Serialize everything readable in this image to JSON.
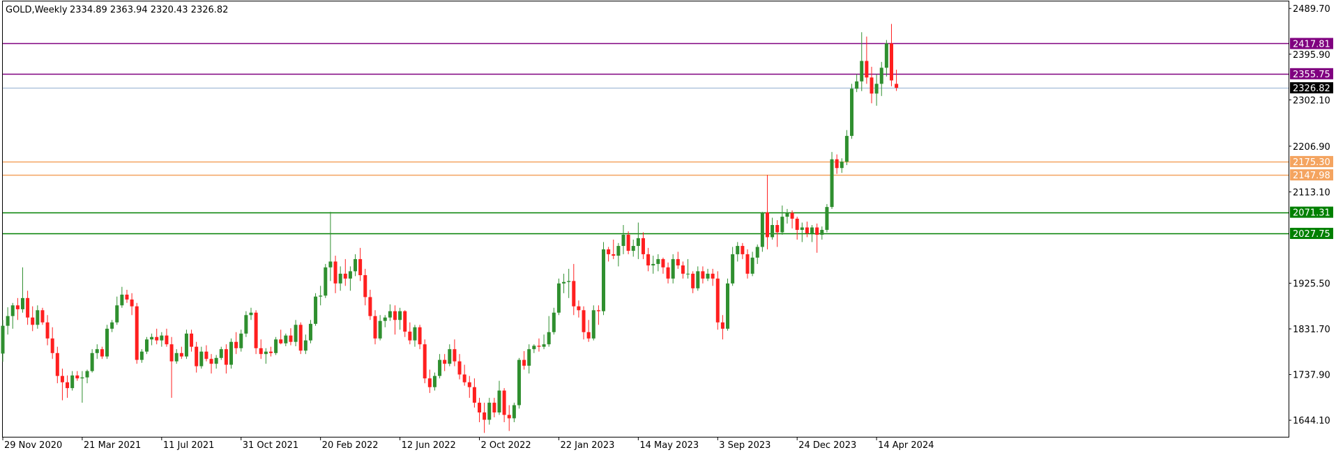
{
  "header": {
    "symbol_label": "GOLD,Weekly",
    "ohlc_label": "2334.89 2363.94 2320.43 2326.82"
  },
  "colors": {
    "bull": "#2f8f2f",
    "bear": "#ff1f1f",
    "grid": "#000000",
    "purple": "#800080",
    "orange": "#f4a460",
    "green": "#008000",
    "current": "#b0c4de",
    "current_tag": "#000000"
  },
  "chart_data": {
    "type": "candlestick",
    "title": "GOLD,Weekly",
    "ylim": [
      1610.0,
      2500.0
    ],
    "yticks": [
      "2489.70",
      "2395.90",
      "2302.10",
      "2206.90",
      "2113.10",
      "1925.50",
      "1831.70",
      "1737.90",
      "1644.10"
    ],
    "xticks": [
      "29 Nov 2020",
      "21 Mar 2021",
      "11 Jul 2021",
      "31 Oct 2021",
      "20 Feb 2022",
      "12 Jun 2022",
      "2 Oct 2022",
      "22 Jan 2023",
      "14 May 2023",
      "3 Sep 2023",
      "24 Dec 2023",
      "14 Apr 2024"
    ],
    "xtick_index": [
      0,
      16,
      32,
      48,
      64,
      80,
      96,
      112,
      128,
      144,
      160,
      176
    ],
    "levels": [
      {
        "value": 2417.81,
        "label": "2417.81",
        "color": "purple"
      },
      {
        "value": 2355.75,
        "label": "2355.75",
        "color": "purple"
      },
      {
        "value": 2326.82,
        "label": "2326.82",
        "color": "current"
      },
      {
        "value": 2175.3,
        "label": "2175.30",
        "color": "orange"
      },
      {
        "value": 2147.98,
        "label": "2147.98",
        "color": "orange"
      },
      {
        "value": 2071.31,
        "label": "2071.31",
        "color": "green"
      },
      {
        "value": 2027.75,
        "label": "2027.75",
        "color": "green"
      }
    ],
    "candles": [
      [
        1781,
        1850,
        1764,
        1838
      ],
      [
        1838,
        1876,
        1820,
        1858
      ],
      [
        1858,
        1885,
        1832,
        1880
      ],
      [
        1880,
        1895,
        1850,
        1872
      ],
      [
        1872,
        1958,
        1865,
        1895
      ],
      [
        1895,
        1910,
        1840,
        1855
      ],
      [
        1855,
        1878,
        1827,
        1840
      ],
      [
        1840,
        1880,
        1832,
        1870
      ],
      [
        1870,
        1875,
        1840,
        1845
      ],
      [
        1845,
        1860,
        1798,
        1812
      ],
      [
        1812,
        1835,
        1770,
        1782
      ],
      [
        1782,
        1795,
        1720,
        1735
      ],
      [
        1735,
        1750,
        1685,
        1722
      ],
      [
        1722,
        1736,
        1690,
        1710
      ],
      [
        1710,
        1745,
        1705,
        1736
      ],
      [
        1736,
        1745,
        1725,
        1730
      ],
      [
        1730,
        1745,
        1680,
        1732
      ],
      [
        1732,
        1748,
        1720,
        1745
      ],
      [
        1745,
        1790,
        1742,
        1782
      ],
      [
        1782,
        1800,
        1770,
        1790
      ],
      [
        1790,
        1795,
        1770,
        1775
      ],
      [
        1775,
        1840,
        1770,
        1832
      ],
      [
        1832,
        1850,
        1825,
        1845
      ],
      [
        1845,
        1898,
        1840,
        1880
      ],
      [
        1880,
        1918,
        1875,
        1902
      ],
      [
        1902,
        1912,
        1885,
        1892
      ],
      [
        1892,
        1905,
        1860,
        1878
      ],
      [
        1878,
        1885,
        1760,
        1768
      ],
      [
        1768,
        1790,
        1762,
        1785
      ],
      [
        1785,
        1815,
        1780,
        1810
      ],
      [
        1810,
        1822,
        1798,
        1815
      ],
      [
        1815,
        1832,
        1800,
        1808
      ],
      [
        1808,
        1825,
        1795,
        1818
      ],
      [
        1818,
        1832,
        1795,
        1800
      ],
      [
        1800,
        1815,
        1690,
        1765
      ],
      [
        1765,
        1790,
        1760,
        1782
      ],
      [
        1782,
        1795,
        1770,
        1775
      ],
      [
        1775,
        1830,
        1770,
        1822
      ],
      [
        1822,
        1830,
        1785,
        1795
      ],
      [
        1795,
        1805,
        1742,
        1755
      ],
      [
        1755,
        1795,
        1750,
        1785
      ],
      [
        1785,
        1798,
        1765,
        1770
      ],
      [
        1770,
        1780,
        1740,
        1760
      ],
      [
        1760,
        1778,
        1750,
        1772
      ],
      [
        1772,
        1795,
        1768,
        1790
      ],
      [
        1790,
        1800,
        1740,
        1758
      ],
      [
        1758,
        1812,
        1750,
        1805
      ],
      [
        1805,
        1825,
        1780,
        1792
      ],
      [
        1792,
        1830,
        1785,
        1822
      ],
      [
        1822,
        1868,
        1815,
        1860
      ],
      [
        1860,
        1875,
        1850,
        1865
      ],
      [
        1865,
        1870,
        1780,
        1792
      ],
      [
        1792,
        1810,
        1770,
        1780
      ],
      [
        1780,
        1792,
        1760,
        1785
      ],
      [
        1785,
        1795,
        1775,
        1782
      ],
      [
        1782,
        1815,
        1778,
        1810
      ],
      [
        1810,
        1830,
        1800,
        1802
      ],
      [
        1802,
        1822,
        1796,
        1818
      ],
      [
        1818,
        1833,
        1798,
        1805
      ],
      [
        1805,
        1850,
        1796,
        1840
      ],
      [
        1840,
        1845,
        1780,
        1787
      ],
      [
        1787,
        1820,
        1780,
        1808
      ],
      [
        1808,
        1850,
        1802,
        1842
      ],
      [
        1842,
        1905,
        1838,
        1898
      ],
      [
        1898,
        1920,
        1880,
        1900
      ],
      [
        1900,
        1965,
        1895,
        1958
      ],
      [
        1958,
        2072,
        1930,
        1970
      ],
      [
        1970,
        1982,
        1905,
        1925
      ],
      [
        1925,
        1960,
        1910,
        1945
      ],
      [
        1945,
        1975,
        1920,
        1935
      ],
      [
        1935,
        1960,
        1910,
        1950
      ],
      [
        1950,
        1985,
        1940,
        1975
      ],
      [
        1975,
        1998,
        1930,
        1942
      ],
      [
        1942,
        1955,
        1880,
        1897
      ],
      [
        1897,
        1912,
        1850,
        1858
      ],
      [
        1858,
        1870,
        1800,
        1812
      ],
      [
        1812,
        1860,
        1808,
        1848
      ],
      [
        1848,
        1860,
        1835,
        1855
      ],
      [
        1855,
        1882,
        1848,
        1868
      ],
      [
        1868,
        1880,
        1820,
        1850
      ],
      [
        1850,
        1875,
        1830,
        1868
      ],
      [
        1868,
        1870,
        1815,
        1826
      ],
      [
        1826,
        1845,
        1800,
        1808
      ],
      [
        1808,
        1840,
        1795,
        1835
      ],
      [
        1835,
        1840,
        1790,
        1800
      ],
      [
        1800,
        1810,
        1720,
        1730
      ],
      [
        1730,
        1748,
        1700,
        1712
      ],
      [
        1712,
        1742,
        1705,
        1735
      ],
      [
        1735,
        1780,
        1730,
        1768
      ],
      [
        1768,
        1780,
        1745,
        1760
      ],
      [
        1760,
        1800,
        1755,
        1790
      ],
      [
        1790,
        1810,
        1755,
        1765
      ],
      [
        1765,
        1780,
        1728,
        1738
      ],
      [
        1738,
        1758,
        1715,
        1722
      ],
      [
        1722,
        1735,
        1690,
        1712
      ],
      [
        1712,
        1730,
        1670,
        1680
      ],
      [
        1680,
        1690,
        1640,
        1660
      ],
      [
        1660,
        1680,
        1618,
        1645
      ],
      [
        1645,
        1690,
        1635,
        1680
      ],
      [
        1680,
        1690,
        1650,
        1660
      ],
      [
        1660,
        1725,
        1655,
        1705
      ],
      [
        1705,
        1710,
        1640,
        1655
      ],
      [
        1655,
        1675,
        1622,
        1648
      ],
      [
        1648,
        1680,
        1640,
        1675
      ],
      [
        1675,
        1772,
        1668,
        1768
      ],
      [
        1768,
        1786,
        1748,
        1756
      ],
      [
        1756,
        1800,
        1740,
        1790
      ],
      [
        1790,
        1800,
        1782,
        1797
      ],
      [
        1797,
        1812,
        1785,
        1795
      ],
      [
        1795,
        1820,
        1790,
        1800
      ],
      [
        1800,
        1858,
        1795,
        1825
      ],
      [
        1825,
        1875,
        1820,
        1865
      ],
      [
        1865,
        1935,
        1860,
        1925
      ],
      [
        1925,
        1945,
        1905,
        1928
      ],
      [
        1928,
        1955,
        1895,
        1930
      ],
      [
        1930,
        1965,
        1860,
        1878
      ],
      [
        1878,
        1890,
        1855,
        1870
      ],
      [
        1870,
        1878,
        1810,
        1825
      ],
      [
        1825,
        1850,
        1805,
        1812
      ],
      [
        1812,
        1880,
        1808,
        1870
      ],
      [
        1870,
        1880,
        1840,
        1868
      ],
      [
        1868,
        2010,
        1860,
        1995
      ],
      [
        1995,
        2000,
        1970,
        1985
      ],
      [
        1985,
        2015,
        1975,
        1982
      ],
      [
        1982,
        2008,
        1960,
        2002
      ],
      [
        2002,
        2045,
        1985,
        2025
      ],
      [
        2025,
        2032,
        1985,
        1992
      ],
      [
        1992,
        2015,
        1980,
        2002
      ],
      [
        2002,
        2050,
        1975,
        2018
      ],
      [
        2018,
        2030,
        1975,
        1985
      ],
      [
        1985,
        1998,
        1950,
        1962
      ],
      [
        1962,
        1982,
        1945,
        1965
      ],
      [
        1965,
        1985,
        1950,
        1975
      ],
      [
        1975,
        1978,
        1945,
        1958
      ],
      [
        1958,
        1968,
        1925,
        1935
      ],
      [
        1935,
        1985,
        1925,
        1975
      ],
      [
        1975,
        1990,
        1955,
        1962
      ],
      [
        1962,
        1970,
        1935,
        1945
      ],
      [
        1945,
        1975,
        1935,
        1945
      ],
      [
        1945,
        1950,
        1905,
        1915
      ],
      [
        1915,
        1960,
        1910,
        1950
      ],
      [
        1950,
        1960,
        1925,
        1935
      ],
      [
        1935,
        1955,
        1930,
        1945
      ],
      [
        1945,
        1955,
        1920,
        1935
      ],
      [
        1935,
        1950,
        1830,
        1845
      ],
      [
        1845,
        1860,
        1810,
        1832
      ],
      [
        1832,
        1935,
        1828,
        1925
      ],
      [
        1925,
        2000,
        1920,
        1985
      ],
      [
        1985,
        2010,
        1970,
        2002
      ],
      [
        2002,
        2008,
        1975,
        1985
      ],
      [
        1985,
        1995,
        1935,
        1945
      ],
      [
        1945,
        1990,
        1940,
        1978
      ],
      [
        1978,
        2005,
        1965,
        2000
      ],
      [
        2000,
        2072,
        1990,
        2071
      ],
      [
        2071,
        2148,
        1995,
        2020
      ],
      [
        2020,
        2060,
        2015,
        2045
      ],
      [
        2045,
        2055,
        2000,
        2030
      ],
      [
        2030,
        2085,
        2025,
        2062
      ],
      [
        2062,
        2078,
        2048,
        2070
      ],
      [
        2070,
        2075,
        2038,
        2058
      ],
      [
        2058,
        2062,
        2015,
        2035
      ],
      [
        2035,
        2050,
        2010,
        2040
      ],
      [
        2040,
        2052,
        2020,
        2028
      ],
      [
        2028,
        2045,
        2010,
        2040
      ],
      [
        2040,
        2048,
        1988,
        2025
      ],
      [
        2025,
        2042,
        2015,
        2035
      ],
      [
        2035,
        2088,
        2030,
        2082
      ],
      [
        2082,
        2195,
        2078,
        2180
      ],
      [
        2180,
        2190,
        2150,
        2162
      ],
      [
        2162,
        2182,
        2152,
        2175
      ],
      [
        2175,
        2240,
        2168,
        2228
      ],
      [
        2228,
        2335,
        2222,
        2325
      ],
      [
        2325,
        2355,
        2318,
        2340
      ],
      [
        2340,
        2441,
        2320,
        2382
      ],
      [
        2382,
        2432,
        2335,
        2348
      ],
      [
        2348,
        2370,
        2295,
        2315
      ],
      [
        2315,
        2355,
        2290,
        2335
      ],
      [
        2335,
        2380,
        2310,
        2368
      ],
      [
        2368,
        2425,
        2350,
        2418
      ],
      [
        2418,
        2458,
        2330,
        2342
      ],
      [
        2334.89,
        2363.94,
        2320.43,
        2326.82
      ]
    ]
  }
}
